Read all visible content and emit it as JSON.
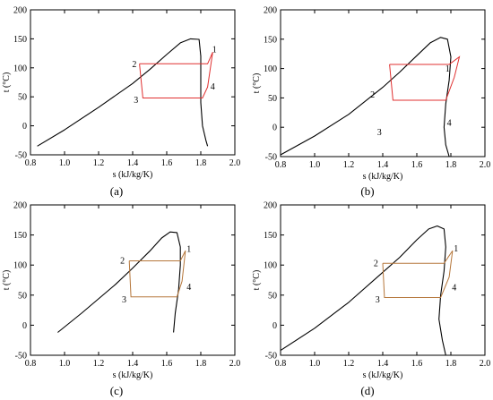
{
  "chart_data": [
    {
      "type": "line",
      "caption": "(a)",
      "xlabel": "s (kJ/kg/K)",
      "ylabel": "t (°C)",
      "xlim": [
        0.8,
        2.0
      ],
      "ylim": [
        -50,
        200
      ],
      "xticks": [
        "0.8",
        "1.0",
        "1.2",
        "1.4",
        "1.6",
        "1.8",
        "2.0"
      ],
      "yticks": [
        "-50",
        "0",
        "50",
        "100",
        "150",
        "200"
      ],
      "dome_color": "#000000",
      "cycle_color": "#e03030",
      "dome": [
        [
          0.84,
          -35
        ],
        [
          1.0,
          -7
        ],
        [
          1.2,
          32
        ],
        [
          1.4,
          73
        ],
        [
          1.5,
          97
        ],
        [
          1.6,
          123
        ],
        [
          1.68,
          143
        ],
        [
          1.74,
          150
        ],
        [
          1.79,
          149
        ],
        [
          1.8,
          120
        ],
        [
          1.8,
          70
        ],
        [
          1.8,
          40
        ],
        [
          1.81,
          0
        ],
        [
          1.83,
          -25
        ],
        [
          1.84,
          -35
        ]
      ],
      "cycle": [
        [
          1.44,
          107
        ],
        [
          1.84,
          107
        ],
        [
          1.87,
          127
        ],
        [
          1.84,
          67
        ],
        [
          1.81,
          48
        ],
        [
          1.46,
          48
        ],
        [
          1.44,
          107
        ]
      ],
      "state_points": [
        {
          "label": "1",
          "x": 1.88,
          "y": 132
        },
        {
          "label": "2",
          "x": 1.41,
          "y": 107
        },
        {
          "label": "3",
          "x": 1.42,
          "y": 45
        },
        {
          "label": "4",
          "x": 1.87,
          "y": 68
        }
      ]
    },
    {
      "type": "line",
      "caption": "(b)",
      "xlabel": "s (kJ/kg/K)",
      "ylabel": "t (°C)",
      "xlim": [
        0.8,
        2.0
      ],
      "ylim": [
        -50,
        200
      ],
      "xticks": [
        "0.8",
        "1.0",
        "1.2",
        "1.4",
        "1.6",
        "1.8",
        "2.0"
      ],
      "yticks": [
        "-50",
        "0",
        "50",
        "100",
        "150",
        "200"
      ],
      "dome_color": "#000000",
      "cycle_color": "#e03030",
      "dome": [
        [
          0.8,
          -47
        ],
        [
          1.0,
          -15
        ],
        [
          1.2,
          22
        ],
        [
          1.4,
          68
        ],
        [
          1.5,
          94
        ],
        [
          1.6,
          122
        ],
        [
          1.68,
          144
        ],
        [
          1.74,
          153
        ],
        [
          1.78,
          150
        ],
        [
          1.8,
          120
        ],
        [
          1.79,
          80
        ],
        [
          1.77,
          40
        ],
        [
          1.76,
          0
        ],
        [
          1.77,
          -30
        ],
        [
          1.79,
          -50
        ]
      ],
      "cycle": [
        [
          1.44,
          107
        ],
        [
          1.79,
          107
        ],
        [
          1.85,
          120
        ],
        [
          1.82,
          85
        ],
        [
          1.77,
          46
        ],
        [
          1.46,
          46
        ],
        [
          1.44,
          107
        ]
      ],
      "state_points": [
        {
          "label": "1",
          "x": 1.78,
          "y": 100
        },
        {
          "label": "2",
          "x": 1.34,
          "y": 56
        },
        {
          "label": "3",
          "x": 1.38,
          "y": -8
        },
        {
          "label": "4",
          "x": 1.79,
          "y": 8
        }
      ]
    },
    {
      "type": "line",
      "caption": "(c)",
      "xlabel": "s (kJ/kg/K)",
      "ylabel": "t (°C)",
      "xlim": [
        0.8,
        2.0
      ],
      "ylim": [
        -50,
        200
      ],
      "xticks": [
        "0.8",
        "1.0",
        "1.2",
        "1.4",
        "1.6",
        "1.8",
        "2.0"
      ],
      "yticks": [
        "-50",
        "0",
        "50",
        "100",
        "150",
        "200"
      ],
      "dome_color": "#000000",
      "cycle_color": "#b5763a",
      "dome": [
        [
          0.96,
          -12
        ],
        [
          1.1,
          20
        ],
        [
          1.3,
          68
        ],
        [
          1.4,
          95
        ],
        [
          1.5,
          123
        ],
        [
          1.57,
          145
        ],
        [
          1.62,
          155
        ],
        [
          1.66,
          154
        ],
        [
          1.68,
          130
        ],
        [
          1.68,
          100
        ],
        [
          1.67,
          60
        ],
        [
          1.65,
          20
        ],
        [
          1.64,
          -12
        ]
      ],
      "cycle": [
        [
          1.38,
          107
        ],
        [
          1.68,
          107
        ],
        [
          1.71,
          124
        ],
        [
          1.69,
          73
        ],
        [
          1.66,
          47
        ],
        [
          1.39,
          47
        ],
        [
          1.38,
          107
        ]
      ],
      "state_points": [
        {
          "label": "1",
          "x": 1.73,
          "y": 127
        },
        {
          "label": "2",
          "x": 1.34,
          "y": 108
        },
        {
          "label": "3",
          "x": 1.35,
          "y": 43
        },
        {
          "label": "4",
          "x": 1.73,
          "y": 64
        }
      ]
    },
    {
      "type": "line",
      "caption": "(d)",
      "xlabel": "s (kJ/kg/K)",
      "ylabel": "t (°C)",
      "xlim": [
        0.8,
        2.0
      ],
      "ylim": [
        -50,
        200
      ],
      "xticks": [
        "0.8",
        "1.0",
        "1.2",
        "1.4",
        "1.6",
        "1.8",
        "2.0"
      ],
      "yticks": [
        "-50",
        "0",
        "50",
        "100",
        "150",
        "200"
      ],
      "dome_color": "#000000",
      "cycle_color": "#b5763a",
      "dome": [
        [
          0.8,
          -42
        ],
        [
          1.0,
          -5
        ],
        [
          1.2,
          38
        ],
        [
          1.4,
          88
        ],
        [
          1.5,
          113
        ],
        [
          1.6,
          142
        ],
        [
          1.67,
          160
        ],
        [
          1.72,
          165
        ],
        [
          1.76,
          160
        ],
        [
          1.77,
          130
        ],
        [
          1.76,
          90
        ],
        [
          1.74,
          50
        ],
        [
          1.73,
          10
        ],
        [
          1.75,
          -25
        ],
        [
          1.77,
          -50
        ]
      ],
      "cycle": [
        [
          1.4,
          103
        ],
        [
          1.76,
          103
        ],
        [
          1.81,
          124
        ],
        [
          1.79,
          80
        ],
        [
          1.74,
          46
        ],
        [
          1.41,
          46
        ],
        [
          1.4,
          103
        ]
      ],
      "state_points": [
        {
          "label": "1",
          "x": 1.83,
          "y": 128
        },
        {
          "label": "2",
          "x": 1.36,
          "y": 103
        },
        {
          "label": "3",
          "x": 1.37,
          "y": 43
        },
        {
          "label": "4",
          "x": 1.82,
          "y": 63
        }
      ]
    }
  ]
}
